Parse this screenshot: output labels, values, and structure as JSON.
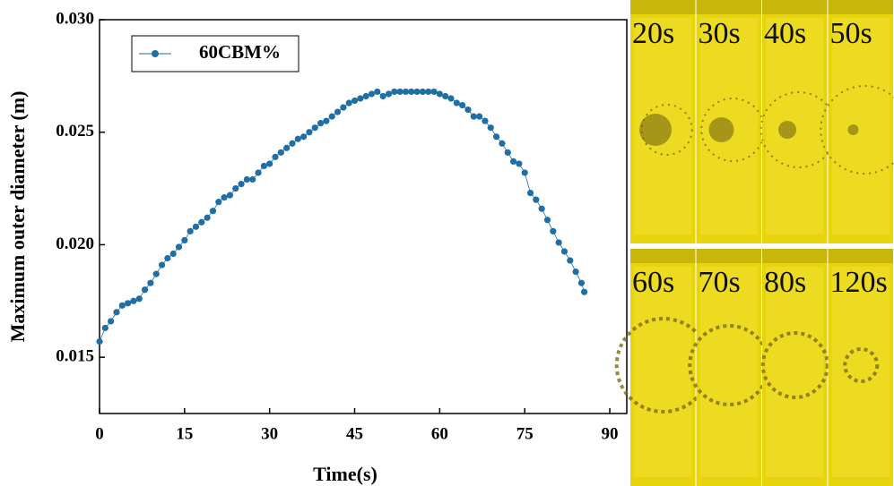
{
  "chart_data": {
    "type": "scatter",
    "x_label": "Time(s)",
    "y_label": "Maximum outer diameter (m)",
    "xlim": [
      0,
      93
    ],
    "xticks": [
      0,
      15,
      30,
      45,
      60,
      75,
      90
    ],
    "ylim": [
      0.0125,
      0.03
    ],
    "yticks": [
      {
        "value": 0.015,
        "label": "0.015"
      },
      {
        "value": 0.02,
        "label": "0.020"
      },
      {
        "value": 0.025,
        "label": "0.025"
      },
      {
        "value": 0.03,
        "label": "0.030"
      }
    ],
    "legend": "upper left",
    "series": [
      {
        "name": "60CBM%",
        "color": "#1f6fa5",
        "x": [
          0,
          1,
          2,
          3,
          4,
          5,
          6,
          7,
          8,
          9,
          10,
          11,
          12,
          13,
          14,
          15,
          16,
          17,
          18,
          19,
          20,
          21,
          22,
          23,
          24,
          25,
          26,
          27,
          28,
          29,
          30,
          31,
          32,
          33,
          34,
          35,
          36,
          37,
          38,
          39,
          40,
          41,
          42,
          43,
          44,
          45,
          46,
          47,
          48,
          49,
          50,
          51,
          52,
          53,
          54,
          55,
          56,
          57,
          58,
          59,
          60,
          61,
          62,
          63,
          64,
          65,
          66,
          67,
          68,
          69,
          70,
          71,
          72,
          73,
          74,
          75,
          76,
          77,
          78,
          79,
          80,
          81,
          82,
          83,
          84,
          85,
          85.5
        ],
        "values": [
          0.0157,
          0.0163,
          0.0166,
          0.017,
          0.0173,
          0.0174,
          0.0175,
          0.0176,
          0.018,
          0.0183,
          0.0187,
          0.0191,
          0.0194,
          0.0196,
          0.0199,
          0.0202,
          0.0206,
          0.0208,
          0.021,
          0.0212,
          0.0215,
          0.0219,
          0.0221,
          0.0222,
          0.0225,
          0.0227,
          0.0229,
          0.0229,
          0.0232,
          0.0235,
          0.0236,
          0.0239,
          0.0241,
          0.0243,
          0.0245,
          0.0247,
          0.0248,
          0.025,
          0.0252,
          0.0254,
          0.0255,
          0.0257,
          0.0259,
          0.0261,
          0.0263,
          0.0264,
          0.0265,
          0.0266,
          0.0267,
          0.0268,
          0.0266,
          0.0267,
          0.0268,
          0.0268,
          0.0268,
          0.0268,
          0.0268,
          0.0268,
          0.0268,
          0.0268,
          0.0267,
          0.0266,
          0.0265,
          0.0263,
          0.0262,
          0.026,
          0.0257,
          0.0257,
          0.0255,
          0.0252,
          0.0248,
          0.0245,
          0.0241,
          0.0237,
          0.0236,
          0.0232,
          0.0223,
          0.022,
          0.0216,
          0.0211,
          0.0206,
          0.0201,
          0.0197,
          0.0193,
          0.0188,
          0.0183,
          0.0179
        ]
      }
    ]
  },
  "photo_labels": [
    "20s",
    "30s",
    "40s",
    "50s",
    "60s",
    "70s",
    "80s",
    "120s"
  ]
}
